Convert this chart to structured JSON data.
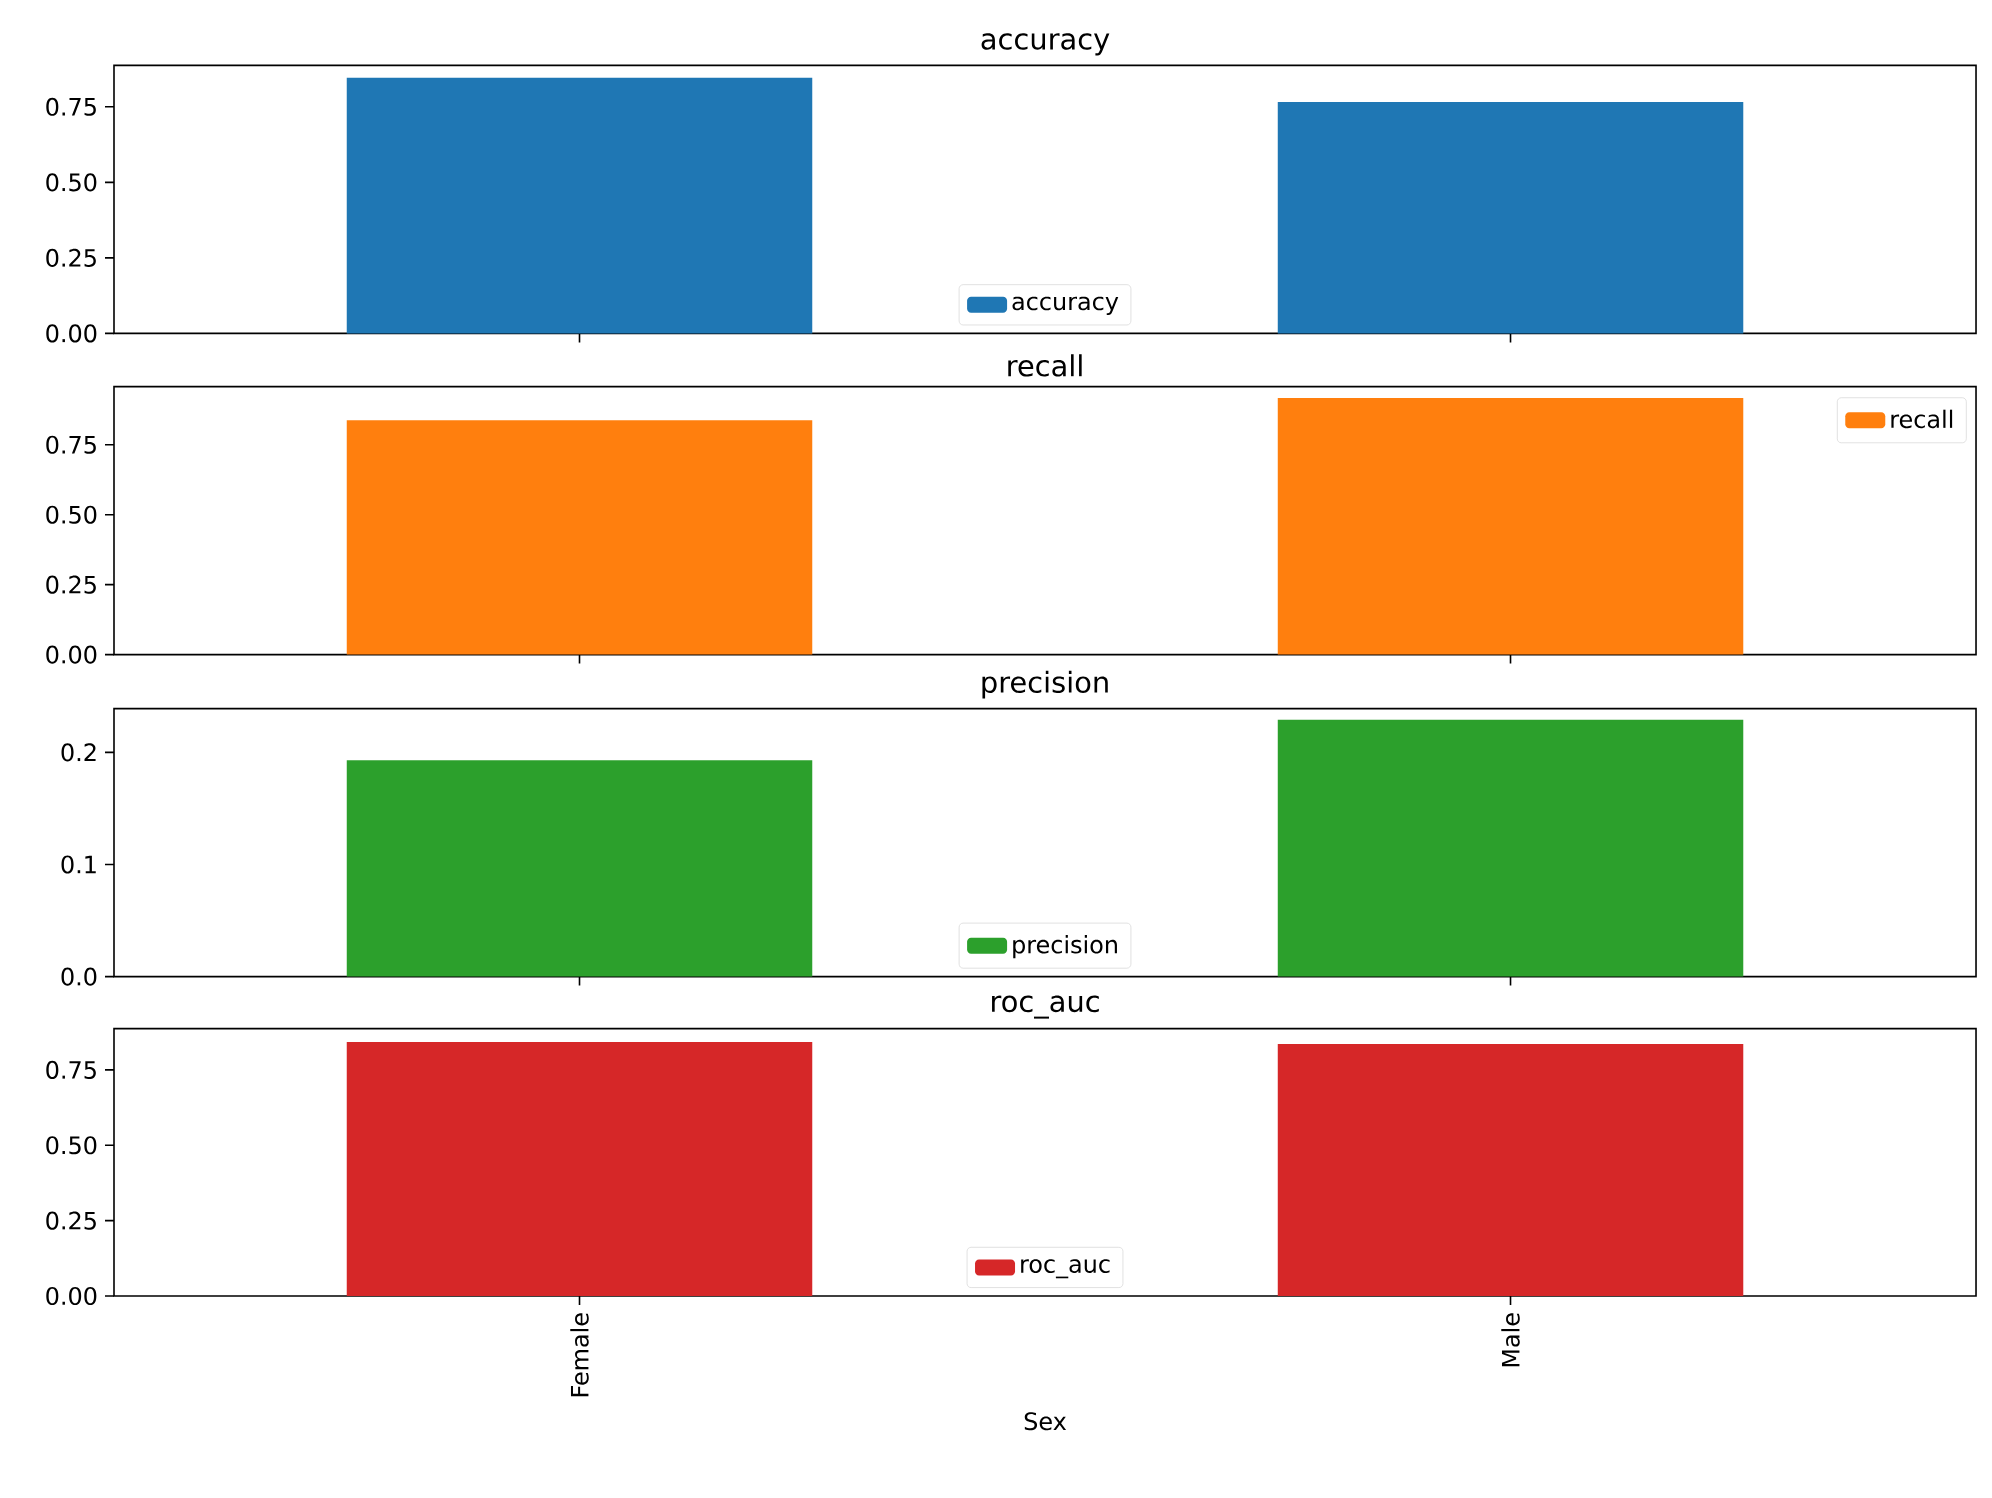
{
  "chart_data": [
    {
      "type": "bar",
      "title": "accuracy",
      "categories": [
        null,
        null
      ],
      "series": [
        {
          "name": "accuracy",
          "color": "#1f77b4",
          "values": [
            0.846,
            0.766
          ]
        }
      ],
      "ylim": [
        0,
        0.887
      ],
      "yticks": [
        {
          "value": 0,
          "label": "0.00"
        },
        {
          "value": 0.25,
          "label": "0.25"
        },
        {
          "value": 0.5,
          "label": "0.50"
        },
        {
          "value": 0.75,
          "label": "0.75"
        }
      ],
      "legend": "bottom",
      "tick_labels": "y"
    },
    {
      "type": "bar",
      "title": "recall",
      "categories": [
        null,
        null
      ],
      "series": [
        {
          "name": "recall",
          "color": "#ff7f0e",
          "values": [
            0.838,
            0.917
          ]
        }
      ],
      "ylim": [
        0,
        0.958
      ],
      "yticks": [
        {
          "value": 0,
          "label": "0.00"
        },
        {
          "value": 0.25,
          "label": "0.25"
        },
        {
          "value": 0.5,
          "label": "0.50"
        },
        {
          "value": 0.75,
          "label": "0.75"
        }
      ],
      "legend": "top right",
      "tick_labels": "y"
    },
    {
      "type": "bar",
      "title": "precision",
      "categories": [
        null,
        null
      ],
      "series": [
        {
          "name": "precision",
          "color": "#2ca02c",
          "values": [
            0.193,
            0.229
          ]
        }
      ],
      "ylim": [
        0,
        0.239
      ],
      "yticks": [
        {
          "value": 0,
          "label": "0.0"
        },
        {
          "value": 0.1,
          "label": "0.1"
        },
        {
          "value": 0.2,
          "label": "0.2"
        }
      ],
      "legend": "bottom",
      "tick_labels": "y"
    },
    {
      "type": "bar",
      "title": "roc_auc",
      "xlabel": "Sex",
      "categories": [
        "Female",
        "Male"
      ],
      "series": [
        {
          "name": "roc_auc",
          "color": "#d62728",
          "values": [
            0.843,
            0.836
          ]
        }
      ],
      "ylim": [
        0,
        0.887
      ],
      "yticks": [
        {
          "value": 0,
          "label": "0.00"
        },
        {
          "value": 0.25,
          "label": "0.25"
        },
        {
          "value": 0.5,
          "label": "0.50"
        },
        {
          "value": 0.75,
          "label": "0.75"
        }
      ],
      "legend": "bottom"
    }
  ]
}
